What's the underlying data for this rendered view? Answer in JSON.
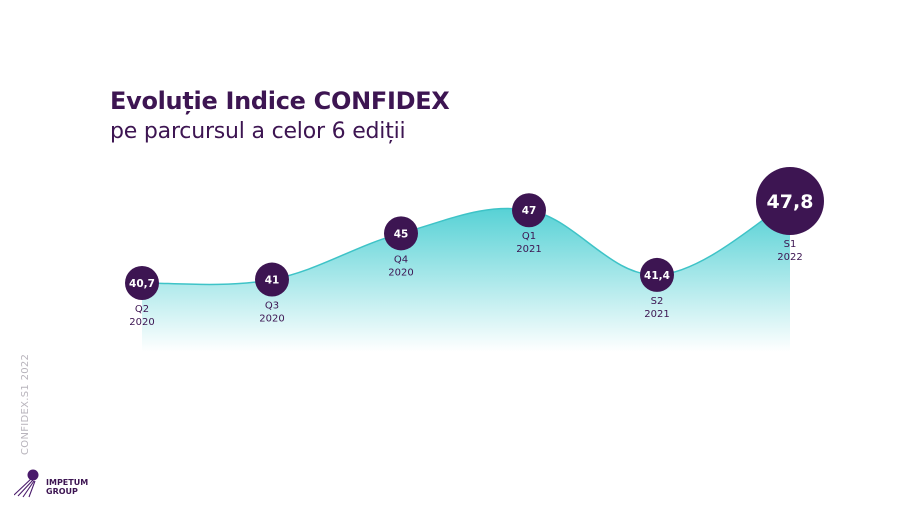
{
  "title": "Evoluție Indice CONFIDEX",
  "subtitle": "pe parcursul a celor 6 ediții",
  "side_label": "CONFIDEX.S1 2022",
  "logo": {
    "line1": "IMPETUM",
    "line2": "GROUP",
    "icon": "impetum-logo-icon"
  },
  "colors": {
    "bubble": "#3d1552",
    "area_top": "#4ecfd3",
    "area_bottom": "#ffffff",
    "line": "#3ec3c7",
    "label": "#3d1552"
  },
  "chart_data": {
    "type": "area",
    "categories": [
      "Q2 2020",
      "Q3 2020",
      "Q4 2020",
      "Q1 2021",
      "S2 2021",
      "S1 2022"
    ],
    "x_labels": [
      [
        "Q2",
        "2020"
      ],
      [
        "Q3",
        "2020"
      ],
      [
        "Q4",
        "2020"
      ],
      [
        "Q1",
        "2021"
      ],
      [
        "S2",
        "2021"
      ],
      [
        "S1",
        "2022"
      ]
    ],
    "values": [
      40.7,
      41,
      45,
      47,
      41.4,
      47.8
    ],
    "data_labels": [
      "40,7",
      "41",
      "45",
      "47",
      "41,4",
      "47,8"
    ],
    "title": "Evoluție Indice CONFIDEX",
    "subtitle": "pe parcursul a celor 6 ediții",
    "xlabel": "",
    "ylabel": "",
    "grid": false,
    "legend": "none"
  }
}
